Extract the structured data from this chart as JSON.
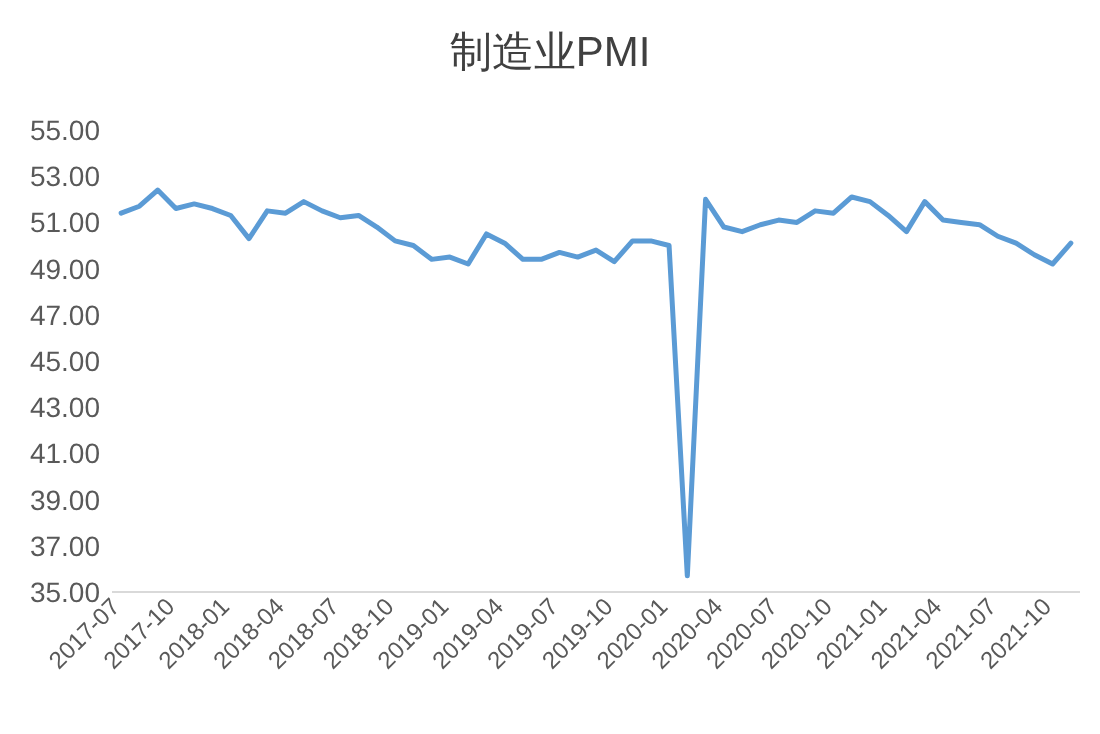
{
  "chart_data": {
    "type": "line",
    "title": "制造业PMI",
    "categories": [
      "2017-07",
      null,
      null,
      "2017-10",
      null,
      null,
      "2018-01",
      null,
      null,
      "2018-04",
      null,
      null,
      "2018-07",
      null,
      null,
      "2018-10",
      null,
      null,
      "2019-01",
      null,
      null,
      "2019-04",
      null,
      null,
      "2019-07",
      null,
      null,
      "2019-10",
      null,
      null,
      "2020-01",
      null,
      null,
      "2020-04",
      null,
      null,
      "2020-07",
      null,
      null,
      "2020-10",
      null,
      null,
      "2021-01",
      null,
      null,
      "2021-04",
      null,
      null,
      "2021-07",
      null,
      null,
      "2021-10",
      null
    ],
    "series": [
      {
        "color": "#5b9bd5",
        "values": [
          51.4,
          51.7,
          52.4,
          51.6,
          51.8,
          51.6,
          51.3,
          50.3,
          51.5,
          51.4,
          51.9,
          51.5,
          51.2,
          51.3,
          50.8,
          50.2,
          50.0,
          49.4,
          49.5,
          49.2,
          50.5,
          50.1,
          49.4,
          49.4,
          49.7,
          49.5,
          49.8,
          49.3,
          50.2,
          50.2,
          50.0,
          35.7,
          52.0,
          50.8,
          50.6,
          50.9,
          51.1,
          51.0,
          51.5,
          51.4,
          52.1,
          51.9,
          51.3,
          50.6,
          51.9,
          51.1,
          51.0,
          50.9,
          50.4,
          50.1,
          49.6,
          49.2,
          50.1
        ]
      }
    ],
    "ylim": [
      35,
      55
    ],
    "yticks": [
      {
        "value": 35,
        "label": "35.00"
      },
      {
        "value": 37,
        "label": "37.00"
      },
      {
        "value": 39,
        "label": "39.00"
      },
      {
        "value": 41,
        "label": "41.00"
      },
      {
        "value": 43,
        "label": "43.00"
      },
      {
        "value": 45,
        "label": "45.00"
      },
      {
        "value": 47,
        "label": "47.00"
      },
      {
        "value": 49,
        "label": "49.00"
      },
      {
        "value": 51,
        "label": "51.00"
      },
      {
        "value": 53,
        "label": "53.00"
      },
      {
        "value": 55,
        "label": "55.00"
      }
    ]
  }
}
